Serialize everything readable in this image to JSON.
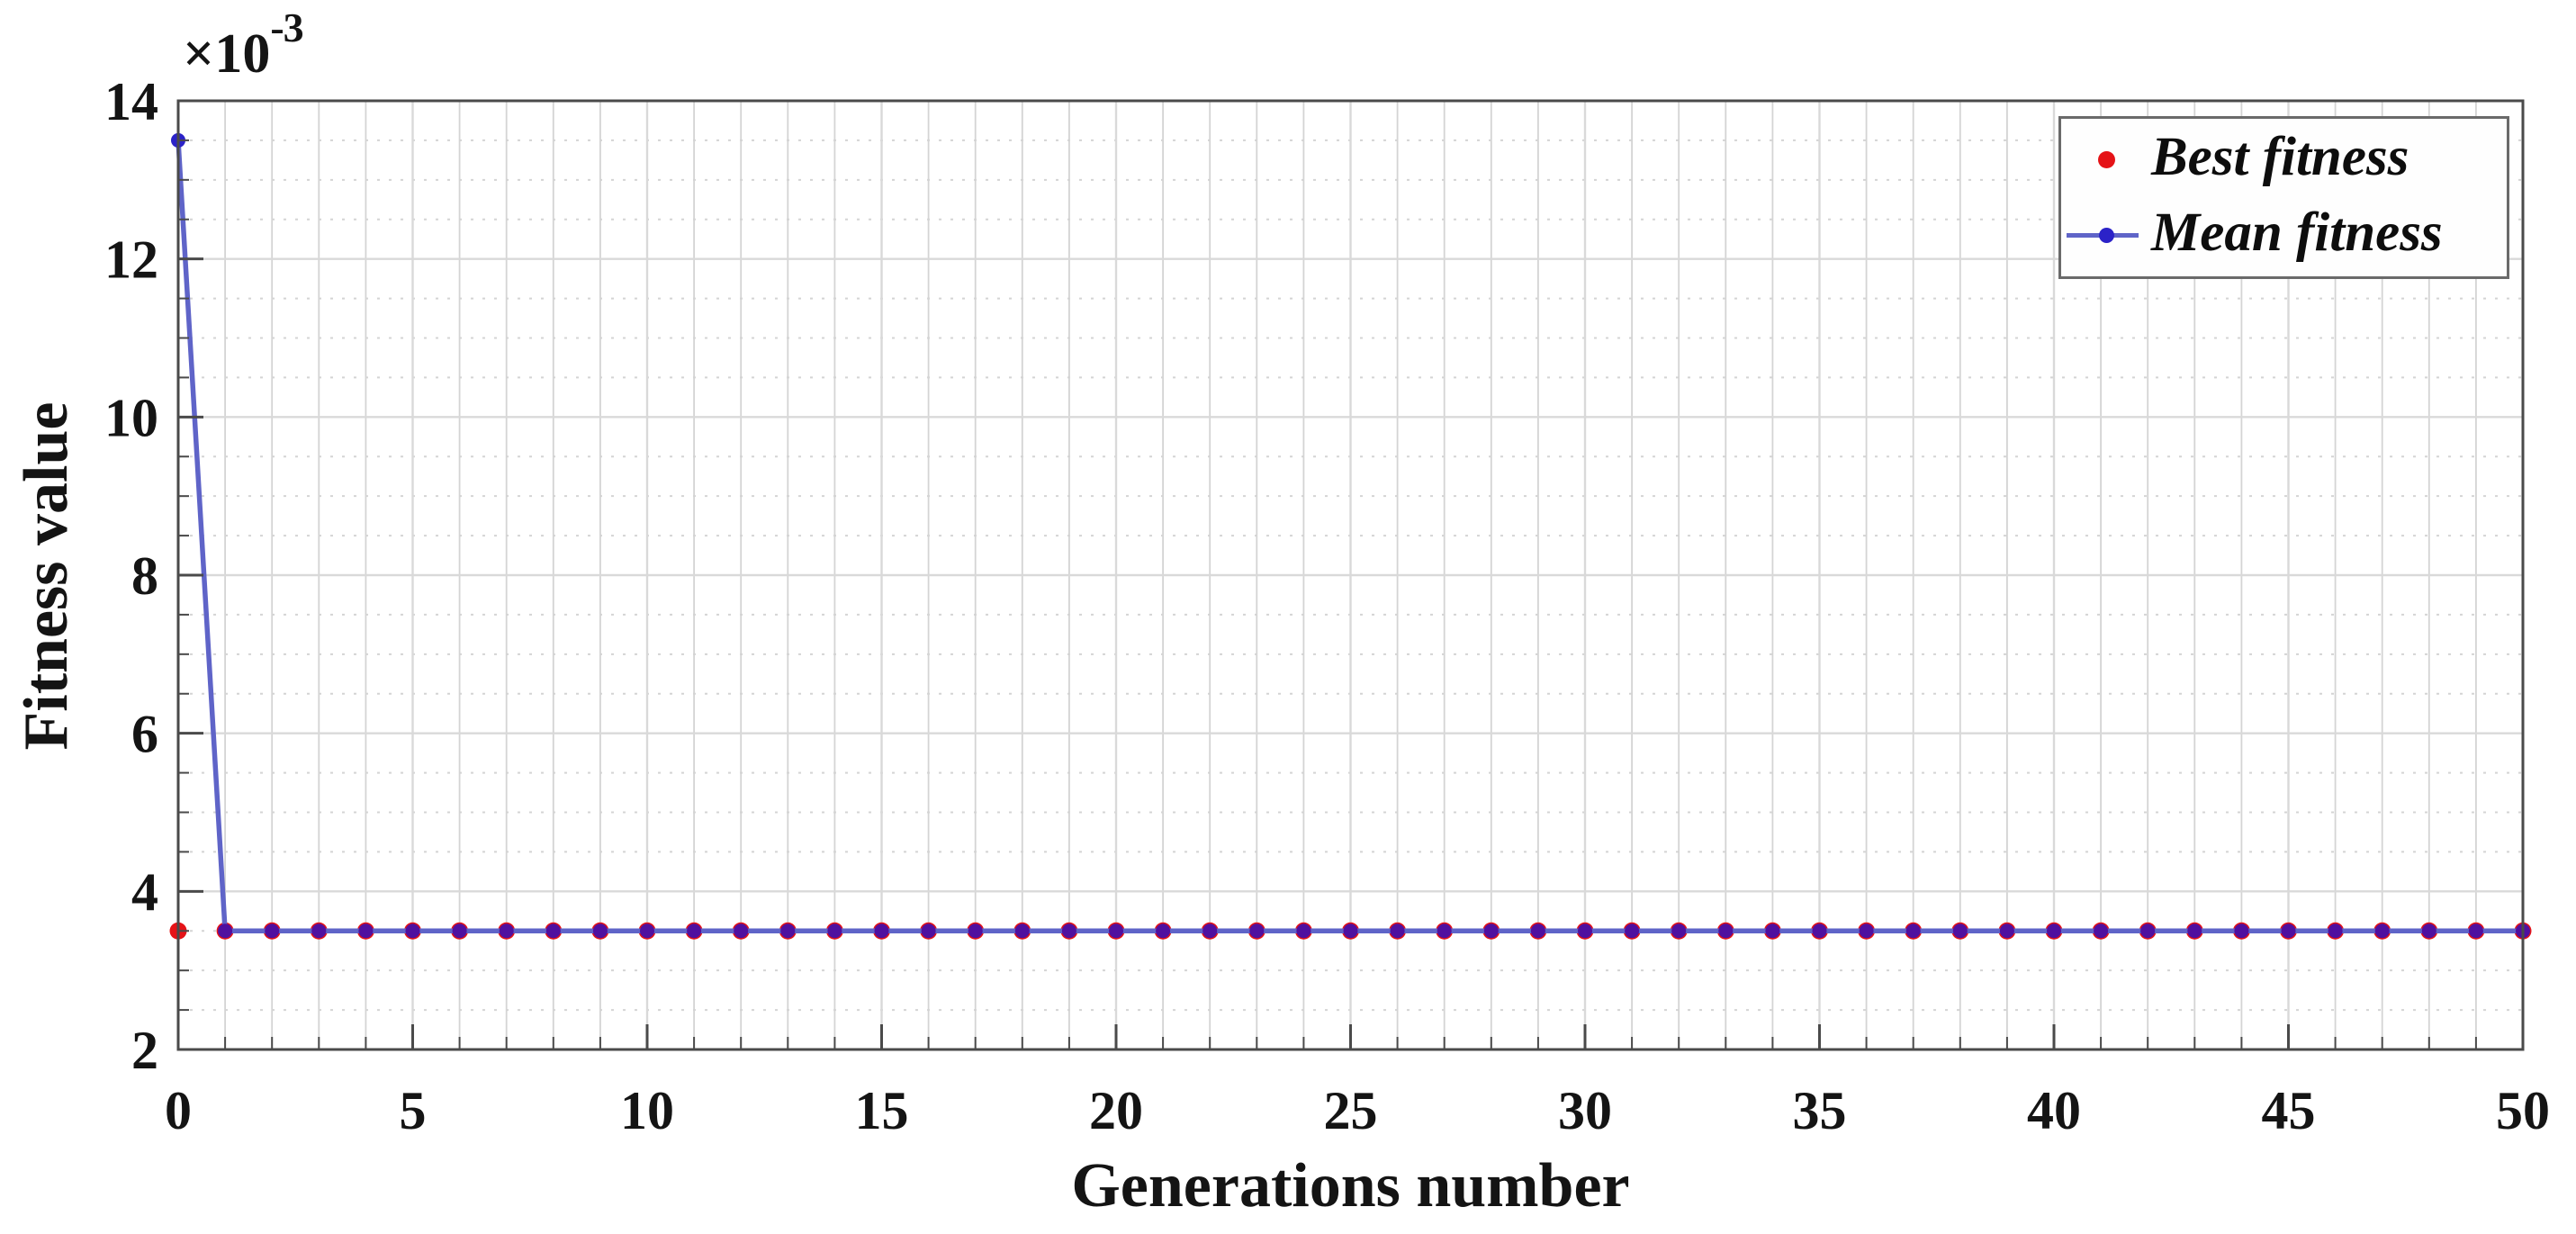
{
  "chart_data": {
    "type": "line",
    "title": "",
    "xlabel": "Generations number",
    "ylabel": "Fitness value",
    "y_scale_exponent": {
      "base": "×10",
      "power": "-3"
    },
    "xlim": [
      0,
      50
    ],
    "ylim": [
      2,
      14
    ],
    "x_major_ticks": [
      0,
      5,
      10,
      15,
      20,
      25,
      30,
      35,
      40,
      45,
      50
    ],
    "y_major_ticks": [
      2,
      4,
      6,
      8,
      10,
      12,
      14
    ],
    "x_minor_step": 1,
    "y_minor_step": 0.5,
    "grid": true,
    "legend_position": "top-right",
    "x": [
      0,
      1,
      2,
      3,
      4,
      5,
      6,
      7,
      8,
      9,
      10,
      11,
      12,
      13,
      14,
      15,
      16,
      17,
      18,
      19,
      20,
      21,
      22,
      23,
      24,
      25,
      26,
      27,
      28,
      29,
      30,
      31,
      32,
      33,
      34,
      35,
      36,
      37,
      38,
      39,
      40,
      41,
      42,
      43,
      44,
      45,
      46,
      47,
      48,
      49,
      50
    ],
    "series": [
      {
        "name": "Best fitness",
        "style": "markers-only",
        "marker": "dot",
        "color": "#e51317",
        "values": [
          3.5,
          3.5,
          3.5,
          3.5,
          3.5,
          3.5,
          3.5,
          3.5,
          3.5,
          3.5,
          3.5,
          3.5,
          3.5,
          3.5,
          3.5,
          3.5,
          3.5,
          3.5,
          3.5,
          3.5,
          3.5,
          3.5,
          3.5,
          3.5,
          3.5,
          3.5,
          3.5,
          3.5,
          3.5,
          3.5,
          3.5,
          3.5,
          3.5,
          3.5,
          3.5,
          3.5,
          3.5,
          3.5,
          3.5,
          3.5,
          3.5,
          3.5,
          3.5,
          3.5,
          3.5,
          3.5,
          3.5,
          3.5,
          3.5,
          3.5,
          3.5
        ]
      },
      {
        "name": "Mean fitness",
        "style": "line-markers",
        "marker": "dot",
        "line_color": "#5f64c8",
        "marker_color": "#2b22c8",
        "marker_color_on_overlap": "#4f109f",
        "values": [
          13.5,
          3.5,
          3.5,
          3.5,
          3.5,
          3.5,
          3.5,
          3.5,
          3.5,
          3.5,
          3.5,
          3.5,
          3.5,
          3.5,
          3.5,
          3.5,
          3.5,
          3.5,
          3.5,
          3.5,
          3.5,
          3.5,
          3.5,
          3.5,
          3.5,
          3.5,
          3.5,
          3.5,
          3.5,
          3.5,
          3.5,
          3.5,
          3.5,
          3.5,
          3.5,
          3.5,
          3.5,
          3.5,
          3.5,
          3.5,
          3.5,
          3.5,
          3.5,
          3.5,
          3.5,
          3.5,
          3.5,
          3.5,
          3.5,
          3.5,
          3.5
        ]
      }
    ],
    "axis_style": {
      "frame_color": "#4a4a4a",
      "tick_color": "#4a4a4a",
      "tick_label_color": "#141414",
      "grid_major_color": "#d9d9d9",
      "grid_minor_color": "#d4d4d4",
      "background": "#ffffff"
    }
  }
}
